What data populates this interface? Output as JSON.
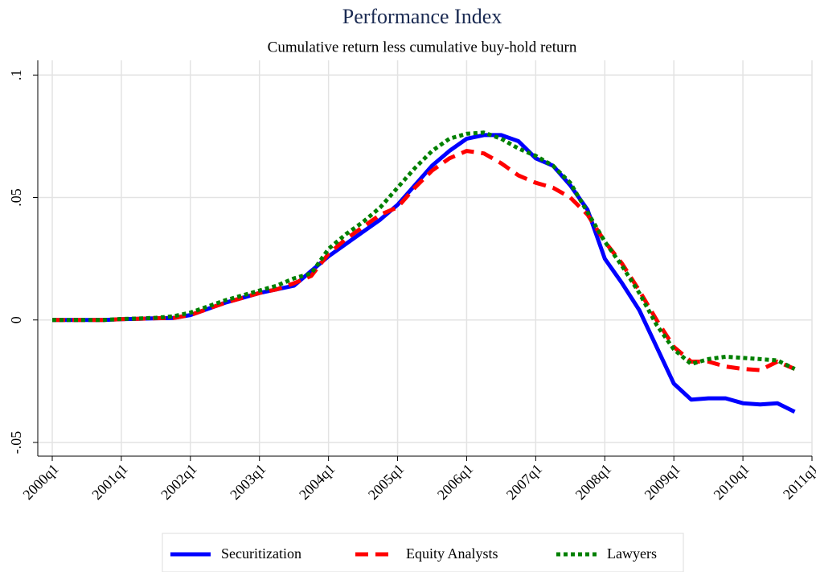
{
  "chart_data": {
    "type": "line",
    "title": "Performance Index",
    "subtitle": "Cumulative return less cumulative buy-hold return",
    "x": [
      2000,
      2000.25,
      2000.5,
      2000.75,
      2001,
      2001.25,
      2001.5,
      2001.75,
      2002,
      2002.25,
      2002.5,
      2002.75,
      2003,
      2003.25,
      2003.5,
      2003.75,
      2004,
      2004.25,
      2004.5,
      2004.75,
      2005,
      2005.25,
      2005.5,
      2005.75,
      2006,
      2006.25,
      2006.5,
      2006.75,
      2007,
      2007.25,
      2007.5,
      2007.75,
      2008,
      2008.25,
      2008.5,
      2008.75,
      2009,
      2009.25,
      2009.5,
      2009.75,
      2010,
      2010.25,
      2010.5,
      2010.75
    ],
    "series": [
      {
        "name": "Securitization",
        "color": "#0000ff",
        "values": [
          0,
          0,
          0,
          0,
          0.0003,
          0.0005,
          0.0007,
          0.0008,
          0.002,
          0.0045,
          0.007,
          0.009,
          0.011,
          0.0125,
          0.014,
          0.02,
          0.026,
          0.031,
          0.036,
          0.041,
          0.047,
          0.055,
          0.063,
          0.069,
          0.074,
          0.0755,
          0.0755,
          0.073,
          0.066,
          0.063,
          0.055,
          0.045,
          0.025,
          0.015,
          0.004,
          -0.011,
          -0.026,
          -0.0325,
          -0.032,
          -0.032,
          -0.034,
          -0.0345,
          -0.034,
          -0.0375
        ]
      },
      {
        "name": "Equity Analysts",
        "color": "#ff0000",
        "values": [
          0,
          0,
          0,
          0,
          0.0003,
          0.0005,
          0.0007,
          0.0008,
          0.002,
          0.0045,
          0.007,
          0.009,
          0.011,
          0.0125,
          0.015,
          0.018,
          0.027,
          0.033,
          0.038,
          0.043,
          0.046,
          0.054,
          0.061,
          0.066,
          0.069,
          0.068,
          0.064,
          0.059,
          0.056,
          0.054,
          0.05,
          0.043,
          0.032,
          0.023,
          0.012,
          0,
          -0.011,
          -0.017,
          -0.017,
          -0.019,
          -0.02,
          -0.0205,
          -0.017,
          -0.02
        ]
      },
      {
        "name": "Lawyers",
        "color": "#008000",
        "values": [
          0,
          0,
          0,
          0,
          0.0004,
          0.0006,
          0.0009,
          0.0015,
          0.003,
          0.0055,
          0.008,
          0.01,
          0.012,
          0.014,
          0.017,
          0.019,
          0.029,
          0.035,
          0.04,
          0.046,
          0.054,
          0.062,
          0.069,
          0.074,
          0.076,
          0.0765,
          0.074,
          0.07,
          0.067,
          0.063,
          0.056,
          0.044,
          0.032,
          0.022,
          0.011,
          -0.002,
          -0.012,
          -0.018,
          -0.016,
          -0.015,
          -0.0155,
          -0.016,
          -0.0165,
          -0.02
        ]
      }
    ],
    "xlim": [
      2000,
      2011
    ],
    "xticks": [
      {
        "value": 2000,
        "label": "2000q1"
      },
      {
        "value": 2001,
        "label": "2001q1"
      },
      {
        "value": 2002,
        "label": "2002q1"
      },
      {
        "value": 2003,
        "label": "2003q1"
      },
      {
        "value": 2004,
        "label": "2004q1"
      },
      {
        "value": 2005,
        "label": "2005q1"
      },
      {
        "value": 2006,
        "label": "2006q1"
      },
      {
        "value": 2007,
        "label": "2007q1"
      },
      {
        "value": 2008,
        "label": "2008q1"
      },
      {
        "value": 2009,
        "label": "2009q1"
      },
      {
        "value": 2010,
        "label": "2010q1"
      },
      {
        "value": 2011,
        "label": "2011q1"
      }
    ],
    "ylim": [
      -0.0556,
      0.106
    ],
    "yticks": [
      {
        "value": -0.05,
        "label": "-.05"
      },
      0,
      {
        "value": 0.05,
        "label": ".05"
      },
      {
        "value": 0.1,
        "label": ".1"
      }
    ],
    "grid": true,
    "legend": "bottom"
  }
}
